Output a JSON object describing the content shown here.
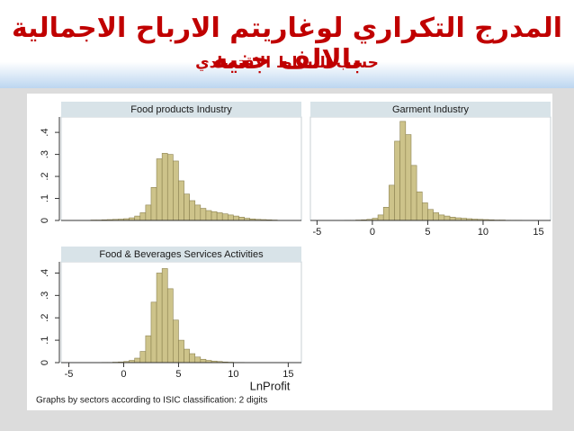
{
  "header": {
    "title": "المدرج التكراري لوغاريتم الارباح الاجمالية بالالف جنيه",
    "subtitle": "حسب النشاط الاقتصادي"
  },
  "xlabel": "LnProfit",
  "note": "Graphs by sectors according to ISIC classification: 2 digits",
  "chart_data": [
    {
      "type": "histogram",
      "title": "Food products Industry",
      "color": "#cdc38a",
      "bins": [
        -3,
        -2.5,
        -2,
        -1.5,
        -1,
        -0.5,
        0,
        0.5,
        1,
        1.5,
        2,
        2.5,
        3,
        3.5,
        4,
        4.5,
        5,
        5.5,
        6,
        6.5,
        7,
        7.5,
        8,
        8.5,
        9,
        9.5,
        10,
        10.5,
        11,
        11.5,
        12,
        12.5,
        13,
        13.5,
        14
      ],
      "values": [
        0.002,
        0.002,
        0.003,
        0.004,
        0.005,
        0.006,
        0.008,
        0.012,
        0.02,
        0.035,
        0.07,
        0.15,
        0.28,
        0.305,
        0.3,
        0.27,
        0.18,
        0.12,
        0.09,
        0.07,
        0.055,
        0.045,
        0.04,
        0.035,
        0.03,
        0.025,
        0.02,
        0.015,
        0.01,
        0.007,
        0.005,
        0.004,
        0.003,
        0.002
      ],
      "xlim": [
        -5.7,
        16.2
      ],
      "ylim": [
        0,
        0.47
      ],
      "yticks": [
        0,
        {
          "value": 0.1,
          "label": ".1"
        },
        {
          "value": 0.2,
          "label": ".2"
        },
        {
          "value": 0.3,
          "label": ".3"
        },
        {
          "value": 0.4,
          "label": ".4"
        }
      ]
    },
    {
      "type": "histogram",
      "title": "Garment Industry",
      "color": "#cdc38a",
      "bins": [
        -3,
        -2.5,
        -2,
        -1.5,
        -1,
        -0.5,
        0,
        0.5,
        1,
        1.5,
        2,
        2.5,
        3,
        3.5,
        4,
        4.5,
        5,
        5.5,
        6,
        6.5,
        7,
        7.5,
        8,
        8.5,
        9,
        9.5,
        10,
        10.5,
        11,
        11.5,
        12,
        12.5,
        13,
        13.5,
        14
      ],
      "values": [
        0,
        0.001,
        0.001,
        0.002,
        0.003,
        0.005,
        0.01,
        0.025,
        0.06,
        0.16,
        0.36,
        0.45,
        0.39,
        0.25,
        0.13,
        0.08,
        0.05,
        0.035,
        0.025,
        0.02,
        0.015,
        0.012,
        0.01,
        0.008,
        0.006,
        0.005,
        0.004,
        0.003,
        0.002,
        0.002,
        0.001,
        0.001,
        0.001,
        0
      ],
      "xlim": [
        -5.6,
        16.1
      ],
      "ylim": [
        0,
        0.47
      ],
      "xticks": [
        -5,
        0,
        5,
        10,
        15
      ]
    },
    {
      "type": "histogram",
      "title": "Food & Beverages Services Activities",
      "color": "#cdc38a",
      "bins": [
        -3,
        -2.5,
        -2,
        -1.5,
        -1,
        -0.5,
        0,
        0.5,
        1,
        1.5,
        2,
        2.5,
        3,
        3.5,
        4,
        4.5,
        5,
        5.5,
        6,
        6.5,
        7,
        7.5,
        8,
        8.5,
        9,
        9.5,
        10,
        10.5,
        11,
        11.5,
        12,
        12.5,
        13,
        13.5,
        14
      ],
      "values": [
        0,
        0,
        0.001,
        0.001,
        0.002,
        0.003,
        0.005,
        0.01,
        0.02,
        0.05,
        0.12,
        0.27,
        0.4,
        0.42,
        0.33,
        0.19,
        0.1,
        0.06,
        0.04,
        0.025,
        0.015,
        0.01,
        0.007,
        0.005,
        0.003,
        0.002,
        0.001,
        0.001,
        0,
        0,
        0,
        0,
        0,
        0
      ],
      "xlim": [
        -5.7,
        16.2
      ],
      "ylim": [
        0,
        0.45
      ],
      "xticks": [
        -5,
        0,
        5,
        10,
        15
      ],
      "yticks": [
        0,
        {
          "value": 0.1,
          "label": ".1"
        },
        {
          "value": 0.2,
          "label": ".2"
        },
        {
          "value": 0.3,
          "label": ".3"
        },
        {
          "value": 0.4,
          "label": ".4"
        }
      ]
    }
  ]
}
